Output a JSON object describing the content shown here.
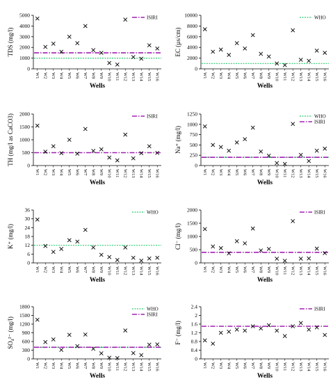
{
  "wells": [
    "W1",
    "W2",
    "W3",
    "W4",
    "W5",
    "W6",
    "W7",
    "W8",
    "W9",
    "W10",
    "W11",
    "W12",
    "W13",
    "W14",
    "W15",
    "W16"
  ],
  "colors": {
    "who": "#2ecc71",
    "isiri": "#a020b0",
    "marker": "#000000"
  },
  "chart_data": [
    {
      "type": "scatter",
      "ylabel": "TDS (mg/l)",
      "xlabel": "Wells",
      "ylim": [
        0,
        5000
      ],
      "yticks": [
        0,
        1000,
        2000,
        3000,
        4000,
        5000
      ],
      "values": [
        4700,
        2050,
        2350,
        1600,
        3000,
        2400,
        4000,
        1750,
        1500,
        550,
        400,
        4600,
        1100,
        950,
        2200,
        1900
      ],
      "references": [
        {
          "name": "WHO",
          "value": 1000,
          "style": "who"
        },
        {
          "name": "ISIRI",
          "value": 1500,
          "style": "isiri"
        }
      ],
      "legend": [
        "ISIRI"
      ]
    },
    {
      "type": "scatter",
      "ylabel": "EC (µs/cm)",
      "xlabel": "Wells",
      "ylim": [
        0,
        10000
      ],
      "yticks": [
        0,
        2000,
        4000,
        6000,
        8000,
        10000
      ],
      "values": [
        7400,
        3200,
        3600,
        2600,
        4800,
        3800,
        6300,
        2800,
        2300,
        1000,
        700,
        7200,
        1700,
        1500,
        3400,
        3000
      ],
      "references": [
        {
          "name": "WHO",
          "value": 1000,
          "style": "who"
        }
      ],
      "legend": [
        "WHO"
      ]
    },
    {
      "type": "scatter",
      "ylabel": "TH (mg/l as CaCO3)",
      "xlabel": "Wells",
      "ylim": [
        0,
        2000
      ],
      "yticks": [
        0,
        500,
        1000,
        1500,
        2000
      ],
      "values": [
        1550,
        540,
        750,
        480,
        1000,
        460,
        1420,
        570,
        630,
        310,
        200,
        1200,
        280,
        480,
        750,
        490
      ],
      "references": [
        {
          "name": "ISIRI",
          "value": 500,
          "style": "isiri"
        }
      ],
      "legend": [
        "ISIRI"
      ]
    },
    {
      "type": "scatter",
      "ylabel": "Na⁺ (mg/l)",
      "xlabel": "Wells",
      "ylim": [
        0,
        1250
      ],
      "yticks": [
        0,
        250,
        500,
        750,
        1000,
        1250
      ],
      "values": [
        950,
        500,
        450,
        360,
        560,
        640,
        920,
        340,
        240,
        60,
        40,
        1010,
        260,
        110,
        360,
        410
      ],
      "references": [
        {
          "name": "WHO",
          "value": 200,
          "style": "who"
        },
        {
          "name": "ISIRI",
          "value": 200,
          "style": "isiri"
        }
      ],
      "legend": [
        "WHO",
        "ISIRI"
      ]
    },
    {
      "type": "scatter",
      "ylabel": "K⁺ (mg/l)",
      "xlabel": "Wells",
      "ylim": [
        0,
        36
      ],
      "yticks": [
        0,
        6,
        12,
        18,
        24,
        30,
        36
      ],
      "values": [
        29.5,
        11.5,
        7.5,
        9.5,
        15.5,
        14.5,
        22.5,
        10.5,
        5.5,
        4,
        2,
        10.5,
        3.5,
        1.5,
        3,
        3.5
      ],
      "references": [
        {
          "name": "WHO",
          "value": 12,
          "style": "who"
        }
      ],
      "legend": [
        "WHO"
      ]
    },
    {
      "type": "scatter",
      "ylabel": "Cl⁻ (mg/l)",
      "xlabel": "Wells",
      "ylim": [
        0,
        2000
      ],
      "yticks": [
        0,
        500,
        1000,
        1500,
        2000
      ],
      "values": [
        1280,
        620,
        560,
        360,
        820,
        740,
        1300,
        470,
        530,
        160,
        80,
        1580,
        160,
        170,
        540,
        370
      ],
      "references": [
        {
          "name": "ISIRI",
          "value": 400,
          "style": "isiri"
        }
      ],
      "legend": [
        "ISIRI"
      ]
    },
    {
      "type": "scatter",
      "ylabel": "SO₄²⁻ (mg/l)",
      "xlabel": "Wells",
      "ylim": [
        0,
        1800
      ],
      "yticks": [
        0,
        300,
        600,
        900,
        1200,
        1500,
        1800
      ],
      "values": [
        1350,
        580,
        670,
        310,
        830,
        440,
        840,
        350,
        190,
        40,
        30,
        980,
        200,
        130,
        490,
        500
      ],
      "references": [
        {
          "name": "WHO",
          "value": 400,
          "style": "who"
        },
        {
          "name": "ISIRI",
          "value": 400,
          "style": "isiri"
        }
      ],
      "legend": [
        "WHO",
        "ISIRI"
      ]
    },
    {
      "type": "scatter",
      "ylabel": "F⁻ (mg/l)",
      "xlabel": "Wells",
      "ylim": [
        0,
        2.4
      ],
      "yticks": [
        "0",
        "0.4",
        "0.8",
        "1.2",
        "1.6",
        "2",
        "2.4"
      ],
      "values": [
        0.85,
        0.7,
        1.2,
        1.25,
        1.35,
        1.3,
        1.5,
        1.4,
        1.55,
        1.3,
        1.05,
        1.5,
        1.65,
        1.35,
        1.45,
        1.1
      ],
      "references": [
        {
          "name": "ISIRI",
          "value": 1.5,
          "style": "isiri"
        }
      ],
      "legend": [
        "ISIRI"
      ]
    }
  ]
}
